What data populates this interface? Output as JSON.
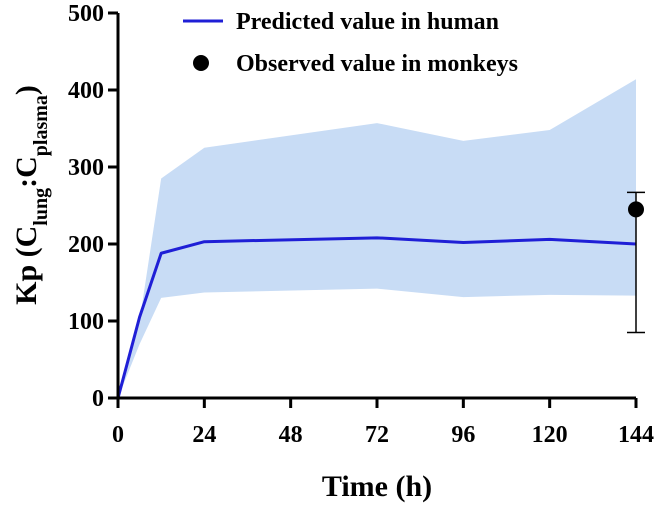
{
  "chart_data": {
    "type": "line",
    "xlabel": "Time (h)",
    "ylabel": {
      "prefix": "Kp (C",
      "sub1": "lung",
      "middle": ":C",
      "sub2": "plasma",
      "suffix": ")"
    },
    "xlim": [
      0,
      144
    ],
    "ylim": [
      0,
      500
    ],
    "xticks": [
      0,
      24,
      48,
      72,
      96,
      120,
      144
    ],
    "yticks": [
      0,
      100,
      200,
      300,
      400,
      500
    ],
    "grid": false,
    "legend_position": "top-right",
    "legend": [
      {
        "label": "Predicted value in human",
        "marker": "line",
        "color": "#1f1fd6"
      },
      {
        "label": "Observed value in monkeys",
        "marker": "dot",
        "color": "#000000"
      }
    ],
    "series": [
      {
        "name": "Predicted value in human",
        "color": "#1f1fd6",
        "x": [
          0,
          6,
          12,
          24,
          72,
          96,
          120,
          144
        ],
        "y": [
          0,
          105,
          188,
          203,
          208,
          202,
          206,
          200
        ]
      }
    ],
    "band": {
      "color": "#c8dcf5",
      "x": [
        0,
        6,
        12,
        24,
        72,
        96,
        120,
        144
      ],
      "upper": [
        0,
        100,
        285,
        325,
        357,
        334,
        348,
        414
      ],
      "lower": [
        0,
        70,
        130,
        137,
        142,
        131,
        134,
        133
      ]
    },
    "observed": {
      "name": "Observed value in monkeys",
      "color": "#000000",
      "x": 144,
      "y": 245,
      "err_low": 85,
      "err_high": 267
    }
  }
}
